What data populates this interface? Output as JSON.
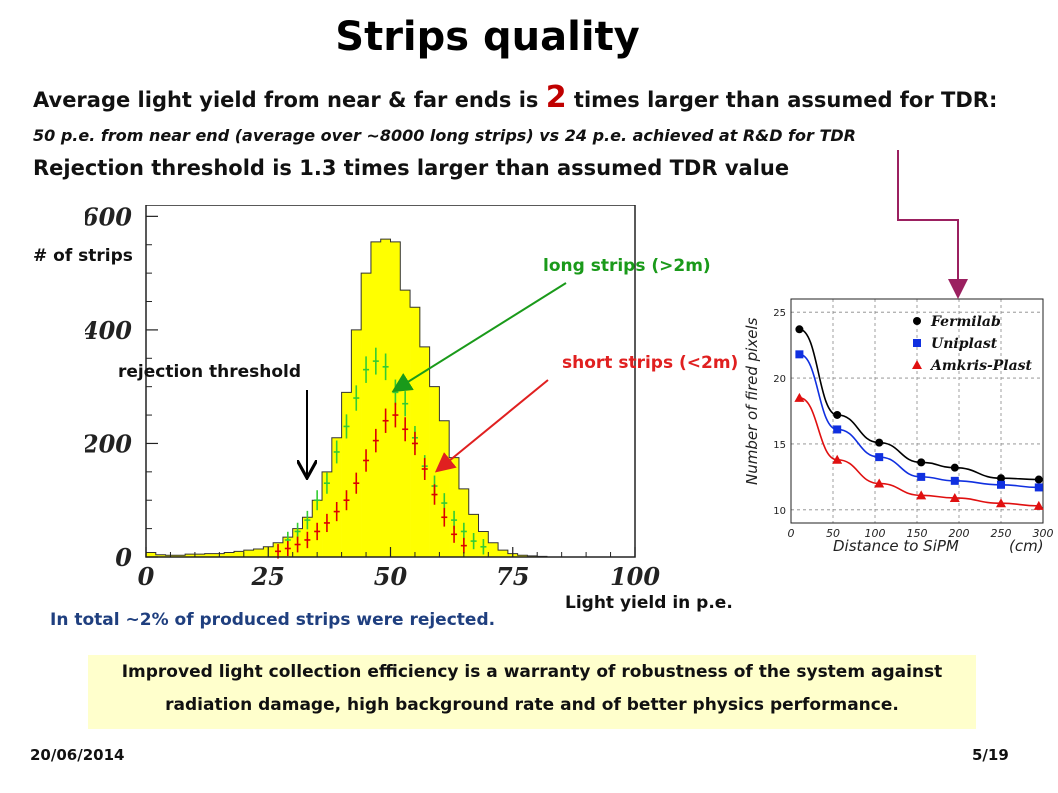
{
  "slide": {
    "title": "Strips quality",
    "line1_pre": "Average light yield from near & far ends is ",
    "line1_num": "2",
    "line1_post": " times larger than assumed for TDR:",
    "line2": "50 p.e. from near end (average over ~8000 long strips) vs 24 p.e. achieved at R&D for TDR",
    "line3": "Rejection threshold is 1.3 times larger than assumed TDR value",
    "total_note": "In total ~2% of produced strips were rejected.",
    "bottom_box_line1": "Improved light collection efficiency is a warranty of robustness of the system against",
    "bottom_box_line2": "radiation damage, high background rate and of better physics performance.",
    "date": "20/06/2014",
    "page": "5/19",
    "annotations": {
      "rejection_threshold": "rejection threshold",
      "long_strips": "long strips (>2m)",
      "short_strips": "short strips (<2m)"
    },
    "colors": {
      "highlight": "#c00000",
      "long": "#1a9a1a",
      "short": "#e02020",
      "note": "#1f3f7f",
      "box_bg": "#ffffcc",
      "connector": "#9b2060"
    }
  },
  "chart_data": [
    {
      "type": "bar",
      "title": "",
      "xlabel": "Light yield in p.e.",
      "ylabel": "# of strips",
      "xlim": [
        0,
        100
      ],
      "ylim": [
        0,
        620
      ],
      "xticks": [
        "0",
        "25",
        "50",
        "75",
        "100"
      ],
      "yticks": [
        "0",
        "200",
        "400",
        "600"
      ],
      "bin_width": 2,
      "x": [
        0,
        2,
        4,
        6,
        8,
        10,
        12,
        14,
        16,
        18,
        20,
        22,
        24,
        26,
        28,
        30,
        32,
        34,
        36,
        38,
        40,
        42,
        44,
        46,
        48,
        50,
        52,
        54,
        56,
        58,
        60,
        62,
        64,
        66,
        68,
        70,
        72,
        74,
        76,
        78,
        80,
        82,
        84,
        86,
        88,
        90,
        92,
        94,
        96,
        98
      ],
      "series": [
        {
          "name": "all strips",
          "color": "#ffff00",
          "values": [
            8,
            4,
            3,
            3,
            5,
            5,
            6,
            6,
            8,
            10,
            12,
            14,
            18,
            25,
            35,
            50,
            70,
            100,
            150,
            210,
            290,
            400,
            500,
            555,
            560,
            555,
            470,
            440,
            370,
            300,
            240,
            175,
            120,
            75,
            45,
            25,
            12,
            6,
            3,
            2,
            1,
            0,
            0,
            0,
            0,
            0,
            0,
            0,
            0,
            0
          ]
        },
        {
          "name": "long strips (>2m)",
          "color": "#33cc33",
          "style": "errorbar",
          "x": [
            29,
            31,
            33,
            35,
            37,
            39,
            41,
            43,
            45,
            47,
            49,
            51,
            53,
            55,
            57,
            59,
            61,
            63,
            65,
            67,
            69
          ],
          "values": [
            30,
            45,
            65,
            100,
            130,
            185,
            230,
            280,
            330,
            345,
            335,
            290,
            270,
            210,
            160,
            125,
            95,
            65,
            45,
            28,
            18
          ]
        },
        {
          "name": "short strips (<2m)",
          "color": "#dd0000",
          "style": "errorbar",
          "x": [
            27,
            29,
            31,
            33,
            35,
            37,
            39,
            41,
            43,
            45,
            47,
            49,
            51,
            53,
            55,
            57,
            59,
            61,
            63,
            65
          ],
          "values": [
            10,
            15,
            22,
            30,
            45,
            60,
            80,
            100,
            130,
            170,
            205,
            240,
            250,
            225,
            200,
            155,
            110,
            70,
            40,
            20
          ]
        }
      ],
      "legend": "none",
      "annotations": [
        "rejection threshold",
        "long strips (>2m)",
        "short strips (<2m)"
      ]
    },
    {
      "type": "scatter",
      "title": "",
      "xlabel": "Distance to SiPM",
      "xlabel_unit": "(cm)",
      "ylabel": "Number of fired pixels",
      "xlim": [
        0,
        300
      ],
      "ylim": [
        9,
        26
      ],
      "xticks": [
        "0",
        "50",
        "100",
        "150",
        "200",
        "250",
        "300"
      ],
      "yticks": [
        "10",
        "15",
        "20",
        "25"
      ],
      "grid": true,
      "legend": "top-right",
      "series": [
        {
          "name": "Fermilab",
          "color": "#000000",
          "marker": "circle",
          "x": [
            10,
            55,
            105,
            155,
            195,
            250,
            295
          ],
          "values": [
            23.7,
            17.2,
            15.1,
            13.6,
            13.2,
            12.4,
            12.3
          ]
        },
        {
          "name": "Uniplast",
          "color": "#1030e0",
          "marker": "square",
          "x": [
            10,
            55,
            105,
            155,
            195,
            250,
            295
          ],
          "values": [
            21.8,
            16.1,
            14.0,
            12.5,
            12.2,
            11.9,
            11.7
          ]
        },
        {
          "name": "Amkris-Plast",
          "color": "#e01010",
          "marker": "triangle",
          "x": [
            10,
            55,
            105,
            155,
            195,
            250,
            295
          ],
          "values": [
            18.5,
            13.8,
            12.0,
            11.1,
            10.9,
            10.5,
            10.3
          ]
        }
      ]
    }
  ]
}
